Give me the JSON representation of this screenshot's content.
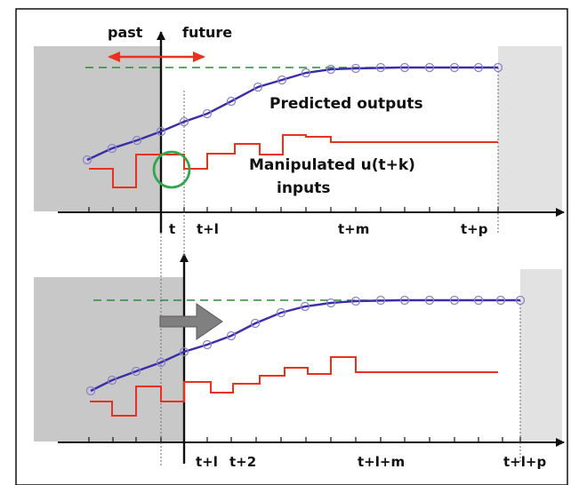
{
  "colors": {
    "output_curve": "#3a2ea6",
    "marker": "#8a83c8",
    "input_steps": "#e8321e",
    "setpoint": "#2e8b3a",
    "circle": "#2ea84a",
    "shade_past": "#c8c8c8",
    "shade_horizon": "#e2e2e2",
    "shift_arrow": "#808080",
    "time_arrow": "#e8321e"
  },
  "top_panel": {
    "label_past": "past",
    "label_future": "future",
    "label_outputs": "Predicted outputs",
    "label_inputs_line1": "Manipulated u(t+k)",
    "label_inputs_line2": "inputs",
    "ticks": {
      "t": "t",
      "t_plus_1": "t+l",
      "t_plus_m": "t+m",
      "t_plus_p": "t+p"
    }
  },
  "bottom_panel": {
    "ticks": {
      "t_plus_1": "t+l",
      "t_plus_2": "t+2",
      "t_plus_1_plus_m": "t+l+m",
      "t_plus_1_plus_p": "t+l+p"
    }
  }
}
